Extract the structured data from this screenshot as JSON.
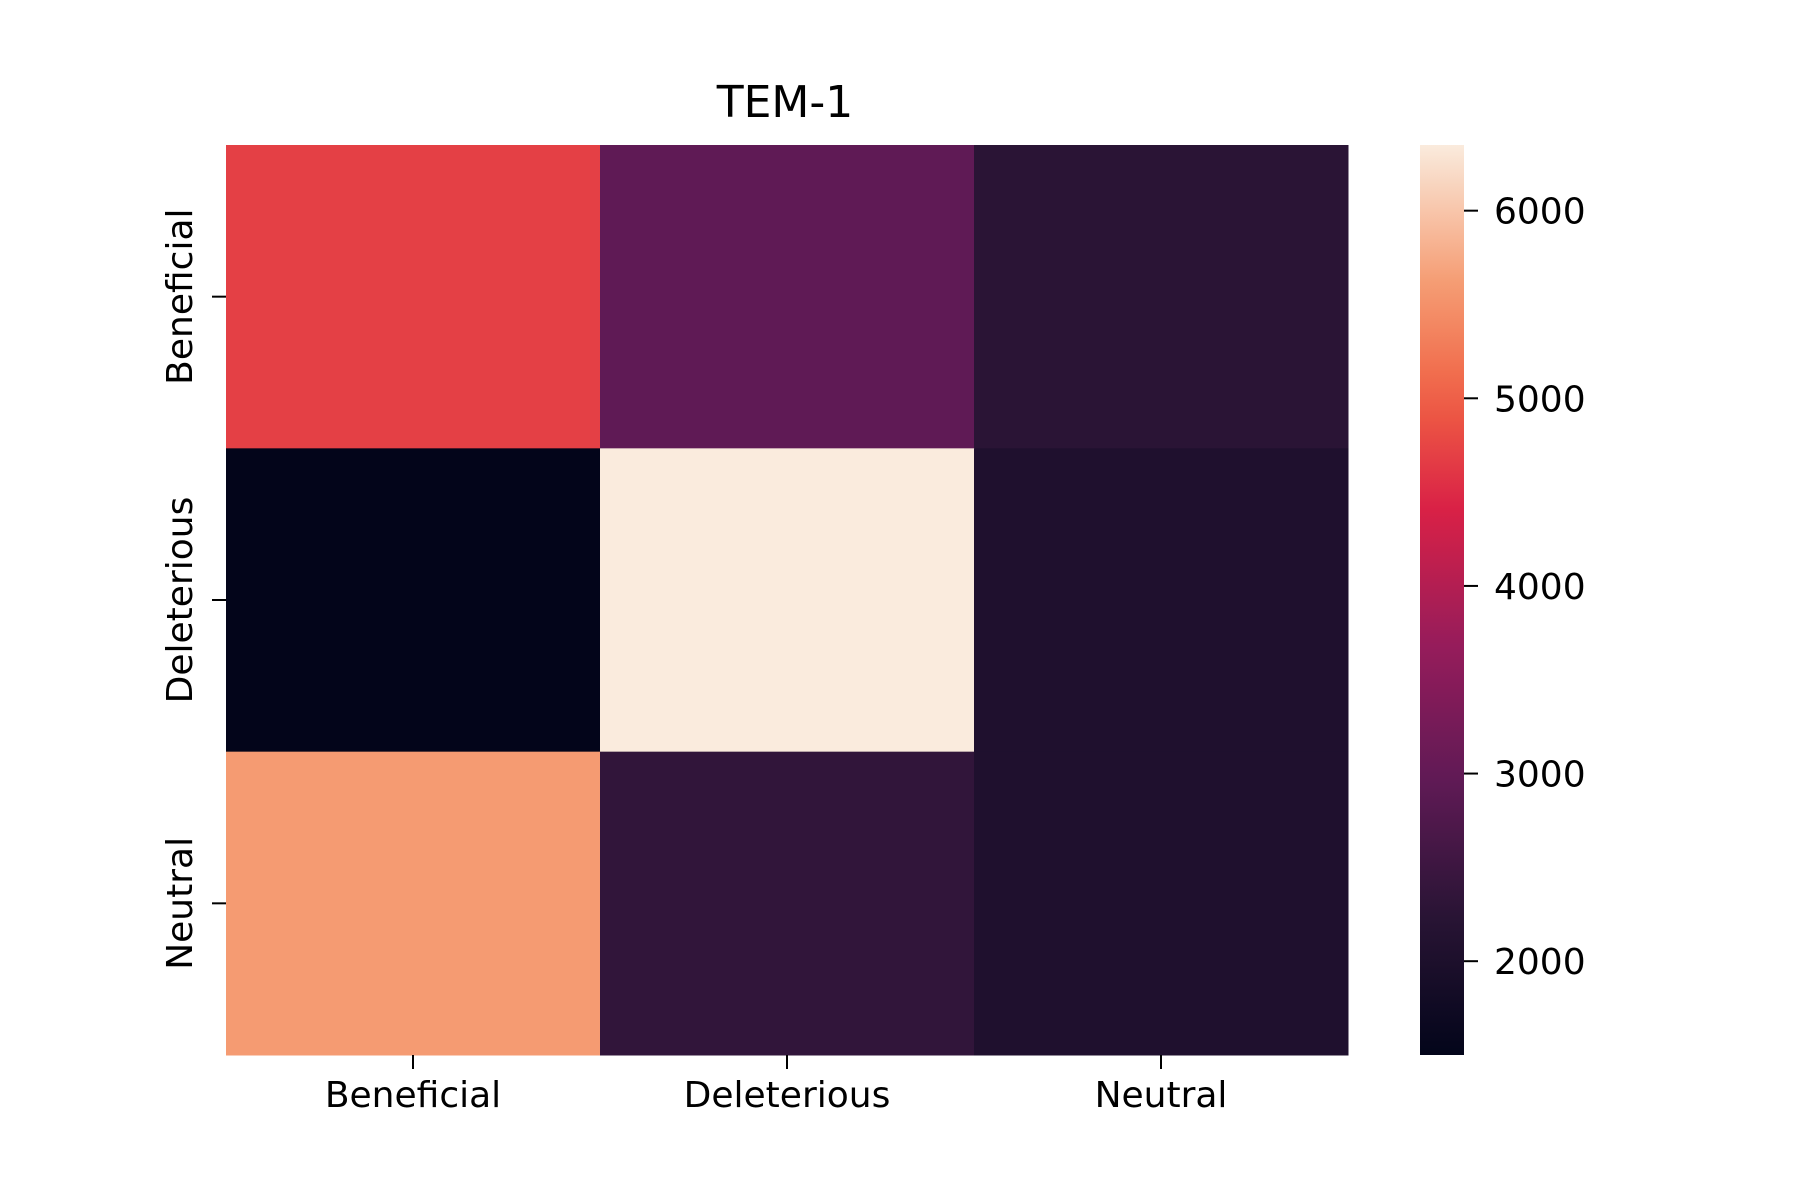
{
  "chart_data": {
    "type": "heatmap",
    "title": "TEM-1",
    "xlabel": "",
    "ylabel": "",
    "x_categories": [
      "Beneficial",
      "Deleterious",
      "Neutral"
    ],
    "y_categories": [
      "Beneficial",
      "Deleterious",
      "Neutral"
    ],
    "values": [
      [
        4700,
        2950,
        2250
      ],
      [
        1500,
        6350,
        2050
      ],
      [
        5600,
        2350,
        2050
      ]
    ],
    "vmin": 1500,
    "vmax": 6350,
    "colormap": "rocket",
    "colorbar": {
      "ticks": [
        2000,
        3000,
        4000,
        5000,
        6000
      ],
      "tick_labels": [
        "2000",
        "3000",
        "4000",
        "5000",
        "6000"
      ]
    },
    "grid": false,
    "legend": "colorbar-right"
  }
}
